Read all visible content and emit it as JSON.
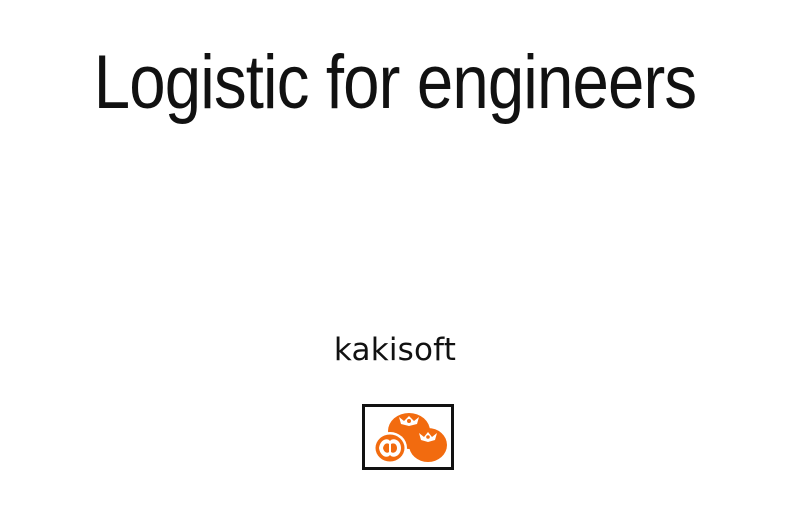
{
  "slide": {
    "title": "Logistic for engineers",
    "author": "kakisoft"
  },
  "logo": {
    "icon": "persimmon-fruits-icon",
    "accent_color": "#F26B0F"
  }
}
